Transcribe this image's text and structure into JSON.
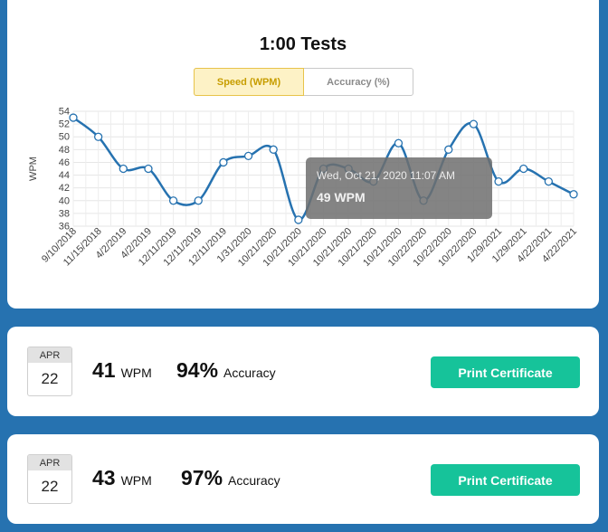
{
  "header": {
    "title": "1:00 Tests"
  },
  "tabs": [
    {
      "label": "Speed (WPM)",
      "active": true
    },
    {
      "label": "Accuracy (%)",
      "active": false
    }
  ],
  "chart_data": {
    "type": "line",
    "ylabel": "WPM",
    "ylim": [
      36,
      54
    ],
    "yticks": [
      36,
      38,
      40,
      42,
      44,
      46,
      48,
      50,
      52,
      54
    ],
    "categories": [
      "9/10/2018",
      "11/15/2018",
      "4/2/2019",
      "4/2/2019",
      "12/11/2019",
      "12/11/2019",
      "12/11/2019",
      "1/31/2020",
      "10/21/2020",
      "10/21/2020",
      "10/21/2020",
      "10/21/2020",
      "10/21/2020",
      "10/21/2020",
      "10/22/2020",
      "10/22/2020",
      "10/22/2020",
      "1/29/2021",
      "1/29/2021",
      "4/22/2021",
      "4/22/2021"
    ],
    "series": [
      {
        "values": [
          53,
          50,
          45,
          45,
          40,
          40,
          46,
          47,
          48,
          37,
          45,
          45,
          43,
          49,
          40,
          48,
          52,
          43,
          45,
          43,
          41
        ]
      }
    ],
    "color": "#2672b0",
    "tooltip": {
      "date": "Wed, Oct 21, 2020 11:07 AM",
      "value": "49 WPM"
    }
  },
  "tests": [
    {
      "month": "APR",
      "day": "22",
      "wpm": "41",
      "wpm_unit": "WPM",
      "accuracy": "94%",
      "accuracy_label": "Accuracy",
      "button": "Print Certificate"
    },
    {
      "month": "APR",
      "day": "22",
      "wpm": "43",
      "wpm_unit": "WPM",
      "accuracy": "97%",
      "accuracy_label": "Accuracy",
      "button": "Print Certificate"
    }
  ]
}
